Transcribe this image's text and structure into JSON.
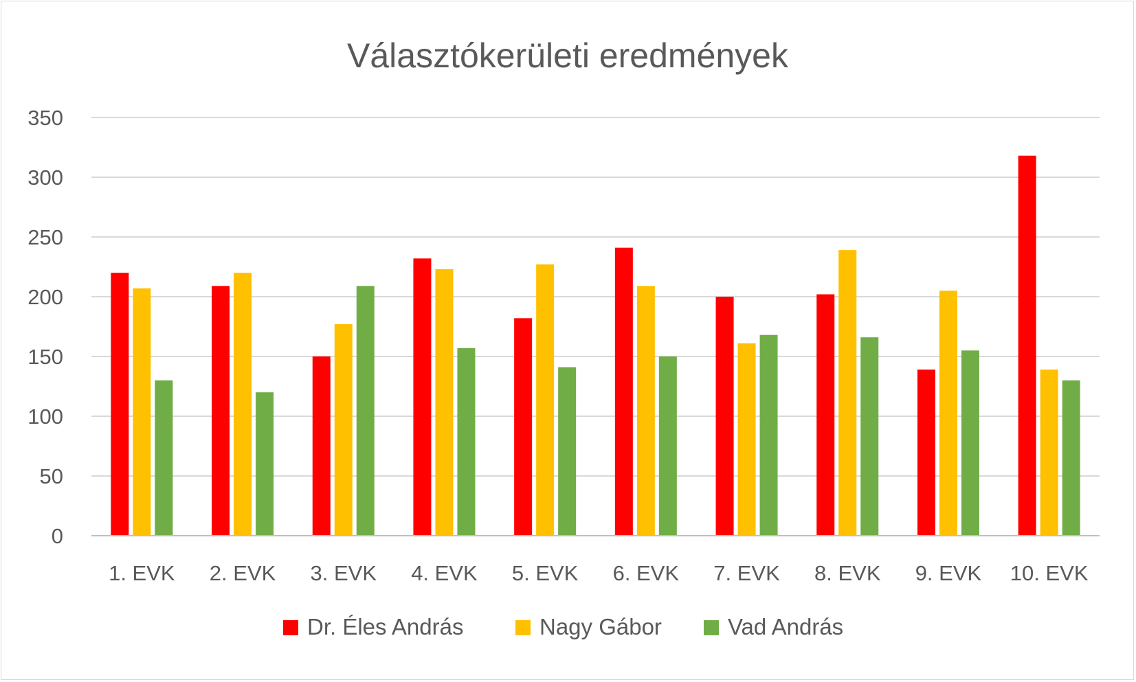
{
  "chart_data": {
    "type": "bar",
    "title": "Választókerületi eredmények",
    "categories": [
      "1. EVK",
      "2. EVK",
      "3. EVK",
      "4. EVK",
      "5. EVK",
      "6. EVK",
      "7. EVK",
      "8. EVK",
      "9. EVK",
      "10. EVK"
    ],
    "series": [
      {
        "name": "Dr. Éles András",
        "color": "#ff0000",
        "values": [
          220,
          209,
          150,
          232,
          182,
          241,
          200,
          202,
          139,
          318
        ]
      },
      {
        "name": "Nagy Gábor",
        "color": "#ffc000",
        "values": [
          207,
          220,
          177,
          223,
          227,
          209,
          161,
          239,
          205,
          139
        ]
      },
      {
        "name": "Vad András",
        "color": "#70ad47",
        "values": [
          130,
          120,
          209,
          157,
          141,
          150,
          168,
          166,
          155,
          130
        ]
      }
    ],
    "ylim": [
      0,
      350
    ],
    "yticks": [
      0,
      50,
      100,
      150,
      200,
      250,
      300,
      350
    ],
    "grid": true,
    "legend": "bottom"
  }
}
